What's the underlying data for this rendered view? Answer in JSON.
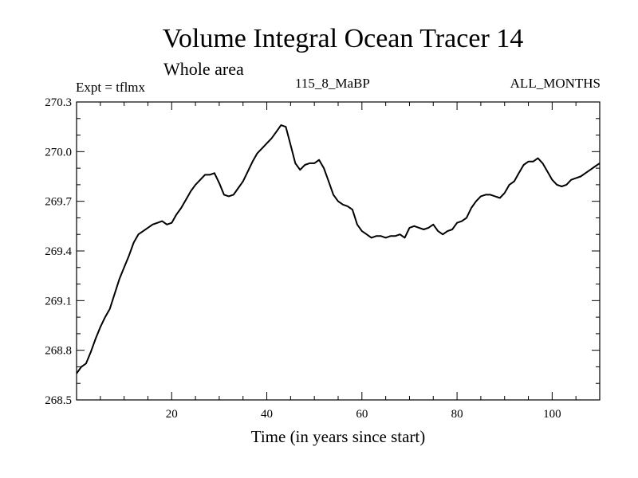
{
  "chart_data": {
    "type": "line",
    "title": "Volume Integral Ocean Tracer 14",
    "subtitle": "Whole area",
    "left_label": "Expt = tflmx",
    "center_label": "115_8_MaBP",
    "right_label": "ALL_MONTHS",
    "xlabel": "Time (in years since start)",
    "ylabel": "",
    "xlim": [
      0,
      110
    ],
    "ylim": [
      268.5,
      270.3
    ],
    "xticks": [
      20,
      40,
      60,
      80,
      100
    ],
    "xtick_labels": [
      "20",
      "40",
      "60",
      "80",
      "100"
    ],
    "yticks": [
      268.5,
      268.8,
      269.1,
      269.4,
      269.7,
      270.0,
      270.3
    ],
    "ytick_labels": [
      "268.5",
      "268.8",
      "269.1",
      "269.4",
      "269.7",
      "270.0",
      "270.3"
    ],
    "grid": false,
    "series": [
      {
        "name": "tracer14",
        "x": [
          0,
          1,
          2,
          3,
          4,
          5,
          6,
          7,
          8,
          9,
          10,
          11,
          12,
          13,
          14,
          15,
          16,
          17,
          18,
          19,
          20,
          21,
          22,
          23,
          24,
          25,
          26,
          27,
          28,
          29,
          30,
          31,
          32,
          33,
          34,
          35,
          36,
          37,
          38,
          39,
          40,
          41,
          42,
          43,
          44,
          45,
          46,
          47,
          48,
          49,
          50,
          51,
          52,
          53,
          54,
          55,
          56,
          57,
          58,
          59,
          60,
          61,
          62,
          63,
          64,
          65,
          66,
          67,
          68,
          69,
          70,
          71,
          72,
          73,
          74,
          75,
          76,
          77,
          78,
          79,
          80,
          81,
          82,
          83,
          84,
          85,
          86,
          87,
          88,
          89,
          90,
          91,
          92,
          93,
          94,
          95,
          96,
          97,
          98,
          99,
          100,
          101,
          102,
          103,
          104,
          105,
          106,
          107,
          108,
          109,
          110
        ],
        "values": [
          268.66,
          268.7,
          268.72,
          268.79,
          268.87,
          268.94,
          269.0,
          269.05,
          269.14,
          269.23,
          269.3,
          269.37,
          269.45,
          269.5,
          269.52,
          269.54,
          269.56,
          269.57,
          269.58,
          269.56,
          269.57,
          269.62,
          269.66,
          269.71,
          269.76,
          269.8,
          269.83,
          269.86,
          269.86,
          269.87,
          269.81,
          269.74,
          269.73,
          269.74,
          269.78,
          269.82,
          269.88,
          269.94,
          269.99,
          270.02,
          270.05,
          270.08,
          270.12,
          270.16,
          270.15,
          270.04,
          269.93,
          269.89,
          269.92,
          269.93,
          269.93,
          269.95,
          269.9,
          269.82,
          269.74,
          269.7,
          269.68,
          269.67,
          269.65,
          269.56,
          269.52,
          269.5,
          269.48,
          269.49,
          269.49,
          269.48,
          269.49,
          269.49,
          269.5,
          269.48,
          269.54,
          269.55,
          269.54,
          269.53,
          269.54,
          269.56,
          269.52,
          269.5,
          269.52,
          269.53,
          269.57,
          269.58,
          269.6,
          269.66,
          269.7,
          269.73,
          269.74,
          269.74,
          269.73,
          269.72,
          269.75,
          269.8,
          269.82,
          269.87,
          269.92,
          269.94,
          269.94,
          269.96,
          269.93,
          269.88,
          269.83,
          269.8,
          269.79,
          269.8,
          269.83,
          269.84,
          269.85,
          269.87,
          269.89,
          269.91,
          269.93
        ]
      }
    ]
  }
}
